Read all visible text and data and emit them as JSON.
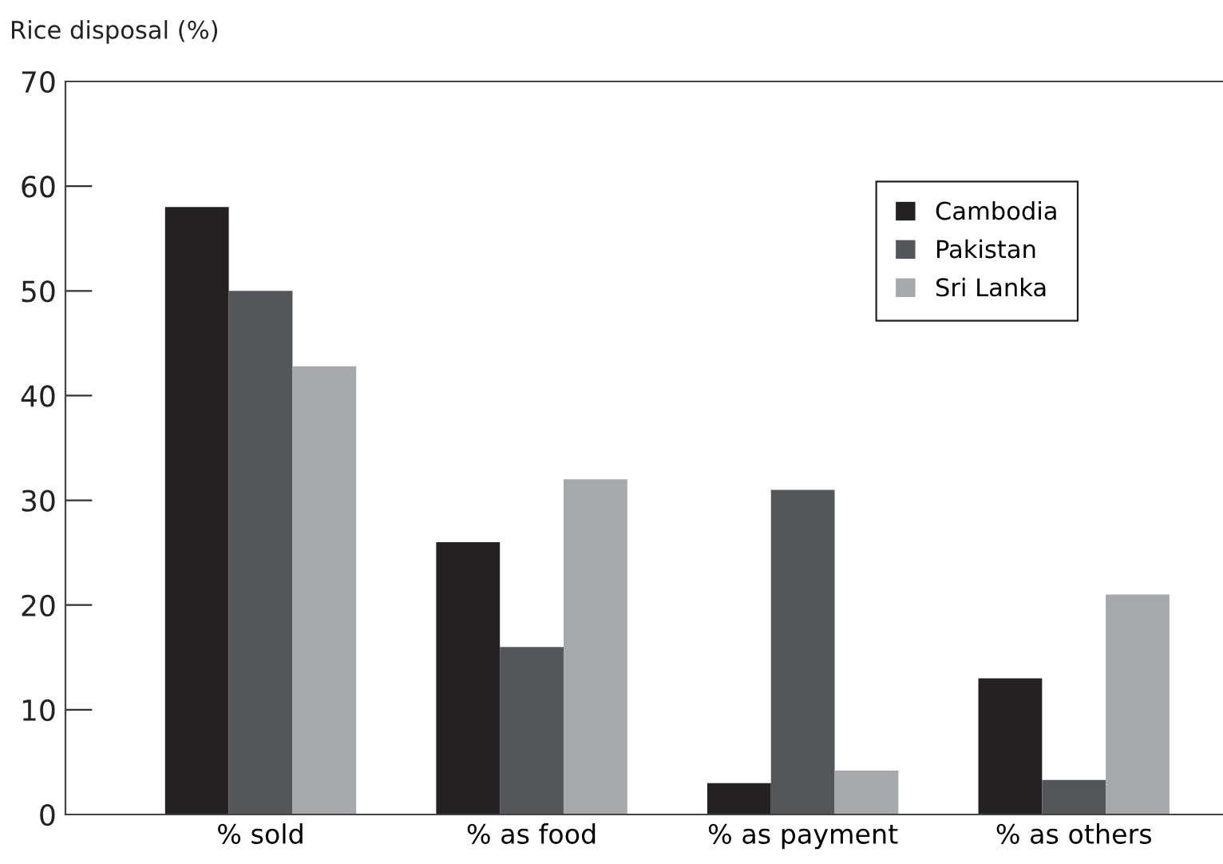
{
  "chart_data": {
    "type": "bar",
    "ylabel": "Rice disposal (%)",
    "categories": [
      "% sold",
      "% as food",
      "% as payment",
      "% as others"
    ],
    "series": [
      {
        "name": "Cambodia",
        "color": "#242122",
        "values": [
          58,
          26,
          3,
          13
        ]
      },
      {
        "name": "Pakistan",
        "color": "#555659",
        "values": [
          50,
          16,
          31,
          3.3
        ]
      },
      {
        "name": "Sri Lanka",
        "color": "#a7a8ab",
        "values": [
          42.8,
          32,
          4.2,
          21
        ]
      }
    ],
    "ylim": [
      0,
      70
    ],
    "yticks": [
      0,
      10,
      20,
      30,
      40,
      50,
      60,
      70
    ],
    "grid": false,
    "legend": "top right"
  }
}
